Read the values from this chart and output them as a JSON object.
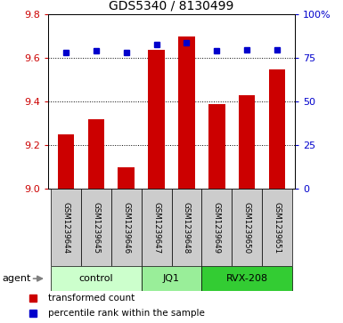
{
  "title": "GDS5340 / 8130499",
  "samples": [
    "GSM1239644",
    "GSM1239645",
    "GSM1239646",
    "GSM1239647",
    "GSM1239648",
    "GSM1239649",
    "GSM1239650",
    "GSM1239651"
  ],
  "red_values": [
    9.25,
    9.32,
    9.1,
    9.64,
    9.7,
    9.39,
    9.43,
    9.55
  ],
  "blue_values": [
    78,
    79,
    78,
    83,
    84,
    79,
    80,
    80
  ],
  "groups": [
    {
      "label": "control",
      "start": 0,
      "end": 3,
      "color": "#ccffcc"
    },
    {
      "label": "JQ1",
      "start": 3,
      "end": 5,
      "color": "#99ee99"
    },
    {
      "label": "RVX-208",
      "start": 5,
      "end": 8,
      "color": "#33cc33"
    }
  ],
  "ylim_left": [
    9.0,
    9.8
  ],
  "ylim_right": [
    0,
    100
  ],
  "yticks_left": [
    9.0,
    9.2,
    9.4,
    9.6,
    9.8
  ],
  "yticks_right": [
    0,
    25,
    50,
    75,
    100
  ],
  "yticklabels_right": [
    "0",
    "25",
    "50",
    "75",
    "100%"
  ],
  "red_color": "#cc0000",
  "blue_color": "#0000cc",
  "bar_base": 9.0,
  "bg_color": "#cccccc",
  "legend_red": "transformed count",
  "legend_blue": "percentile rank within the sample",
  "agent_label": "agent",
  "bar_width": 0.55
}
